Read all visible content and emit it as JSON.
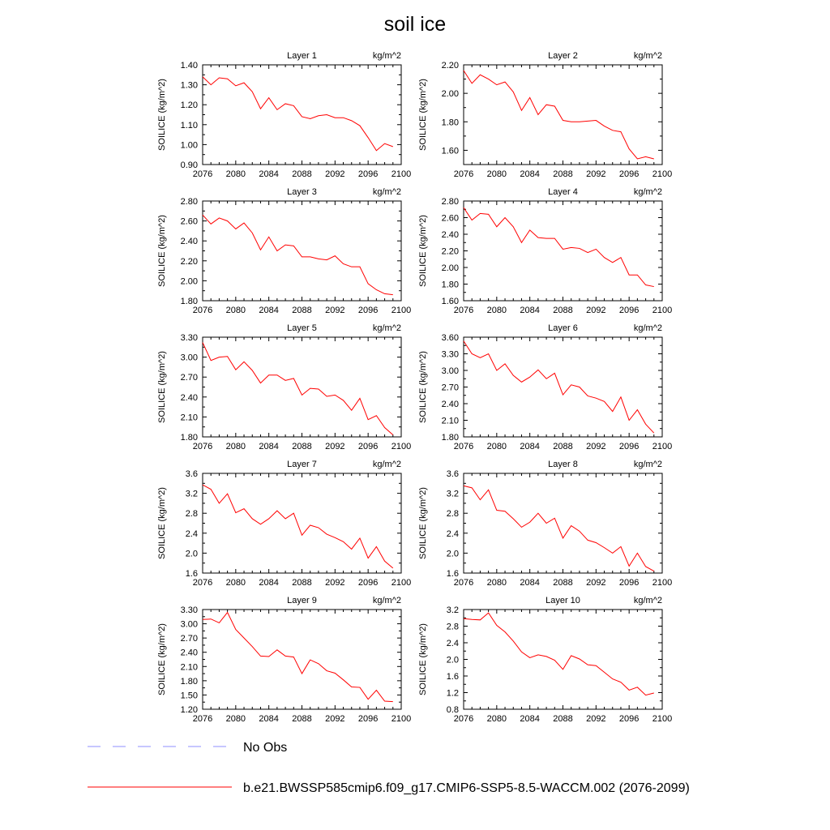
{
  "title": "soil ice",
  "colors": {
    "model_line": "#ff0000",
    "obs_line": "#8f8fff",
    "axis": "#000000",
    "background": "#ffffff"
  },
  "legend": [
    {
      "label": "No Obs",
      "style": "dashed",
      "color": "#8f8fff"
    },
    {
      "label": "b.e21.BWSSP585cmip6.f09_g17.CMIP6-SSP5-8.5-WACCM.002 (2076-2099)",
      "style": "solid",
      "color": "#ff0000"
    }
  ],
  "chart_data": [
    {
      "type": "line",
      "title": "Layer 1",
      "units": "kg/m^2",
      "ylabel": "SOILICE  (kg/m^2)",
      "xlim": [
        2076,
        2100
      ],
      "ylim": [
        0.9,
        1.4
      ],
      "xticks": [
        "2076",
        "2080",
        "2084",
        "2088",
        "2092",
        "2096",
        "2100"
      ],
      "yticks": [
        "0.90",
        "1.00",
        "1.10",
        "1.20",
        "1.30",
        "1.40"
      ],
      "x": [
        2076,
        2077,
        2078,
        2079,
        2080,
        2081,
        2082,
        2083,
        2084,
        2085,
        2086,
        2087,
        2088,
        2089,
        2090,
        2091,
        2092,
        2093,
        2094,
        2095,
        2096,
        2097,
        2098,
        2099
      ],
      "series": [
        {
          "name": "b.e21.BWSSP585cmip6.f09_g17.CMIP6-SSP5-8.5-WACCM.002 (2076-2099)",
          "values": [
            1.34,
            1.3,
            1.335,
            1.33,
            1.295,
            1.31,
            1.265,
            1.18,
            1.235,
            1.175,
            1.205,
            1.195,
            1.14,
            1.13,
            1.145,
            1.15,
            1.135,
            1.135,
            1.12,
            1.095,
            1.035,
            0.97,
            1.005,
            0.99
          ]
        }
      ]
    },
    {
      "type": "line",
      "title": "Layer 2",
      "units": "kg/m^2",
      "ylabel": "SOILICE  (kg/m^2)",
      "xlim": [
        2076,
        2100
      ],
      "ylim": [
        1.5,
        2.2
      ],
      "xticks": [
        "2076",
        "2080",
        "2084",
        "2088",
        "2092",
        "2096",
        "2100"
      ],
      "yticks": [
        "1.60",
        "1.80",
        "2.00",
        "2.20"
      ],
      "x": [
        2076,
        2077,
        2078,
        2079,
        2080,
        2081,
        2082,
        2083,
        2084,
        2085,
        2086,
        2087,
        2088,
        2089,
        2090,
        2091,
        2092,
        2093,
        2094,
        2095,
        2096,
        2097,
        2098,
        2099
      ],
      "series": [
        {
          "name": "b.e21.BWSSP585cmip6.f09_g17.CMIP6-SSP5-8.5-WACCM.002 (2076-2099)",
          "values": [
            2.16,
            2.07,
            2.13,
            2.1,
            2.06,
            2.08,
            2.01,
            1.88,
            1.97,
            1.85,
            1.92,
            1.91,
            1.81,
            1.8,
            1.8,
            1.805,
            1.81,
            1.77,
            1.74,
            1.73,
            1.61,
            1.54,
            1.555,
            1.54
          ]
        }
      ]
    },
    {
      "type": "line",
      "title": "Layer 3",
      "units": "kg/m^2",
      "ylabel": "SOILICE  (kg/m^2)",
      "xlim": [
        2076,
        2100
      ],
      "ylim": [
        1.8,
        2.8
      ],
      "xticks": [
        "2076",
        "2080",
        "2084",
        "2088",
        "2092",
        "2096",
        "2100"
      ],
      "yticks": [
        "1.80",
        "2.00",
        "2.20",
        "2.40",
        "2.60",
        "2.80"
      ],
      "x": [
        2076,
        2077,
        2078,
        2079,
        2080,
        2081,
        2082,
        2083,
        2084,
        2085,
        2086,
        2087,
        2088,
        2089,
        2090,
        2091,
        2092,
        2093,
        2094,
        2095,
        2096,
        2097,
        2098,
        2099
      ],
      "series": [
        {
          "name": "b.e21.BWSSP585cmip6.f09_g17.CMIP6-SSP5-8.5-WACCM.002 (2076-2099)",
          "values": [
            2.66,
            2.57,
            2.63,
            2.6,
            2.52,
            2.58,
            2.48,
            2.31,
            2.44,
            2.3,
            2.36,
            2.35,
            2.24,
            2.24,
            2.22,
            2.21,
            2.25,
            2.17,
            2.14,
            2.14,
            1.97,
            1.91,
            1.87,
            1.86
          ]
        }
      ]
    },
    {
      "type": "line",
      "title": "Layer 4",
      "units": "kg/m^2",
      "ylabel": "SOILICE  (kg/m^2)",
      "xlim": [
        2076,
        2100
      ],
      "ylim": [
        1.6,
        2.8
      ],
      "xticks": [
        "2076",
        "2080",
        "2084",
        "2088",
        "2092",
        "2096",
        "2100"
      ],
      "yticks": [
        "1.60",
        "1.80",
        "2.00",
        "2.20",
        "2.40",
        "2.60",
        "2.80"
      ],
      "x": [
        2076,
        2077,
        2078,
        2079,
        2080,
        2081,
        2082,
        2083,
        2084,
        2085,
        2086,
        2087,
        2088,
        2089,
        2090,
        2091,
        2092,
        2093,
        2094,
        2095,
        2096,
        2097,
        2098,
        2099
      ],
      "series": [
        {
          "name": "b.e21.BWSSP585cmip6.f09_g17.CMIP6-SSP5-8.5-WACCM.002 (2076-2099)",
          "values": [
            2.72,
            2.57,
            2.65,
            2.64,
            2.49,
            2.6,
            2.49,
            2.3,
            2.45,
            2.36,
            2.35,
            2.35,
            2.22,
            2.24,
            2.23,
            2.18,
            2.22,
            2.12,
            2.06,
            2.12,
            1.91,
            1.91,
            1.79,
            1.77
          ]
        }
      ]
    },
    {
      "type": "line",
      "title": "Layer 5",
      "units": "kg/m^2",
      "ylabel": "SOILICE  (kg/m^2)",
      "xlim": [
        2076,
        2100
      ],
      "ylim": [
        1.8,
        3.3
      ],
      "xticks": [
        "2076",
        "2080",
        "2084",
        "2088",
        "2092",
        "2096",
        "2100"
      ],
      "yticks": [
        "1.80",
        "2.10",
        "2.40",
        "2.70",
        "3.00",
        "3.30"
      ],
      "x": [
        2076,
        2077,
        2078,
        2079,
        2080,
        2081,
        2082,
        2083,
        2084,
        2085,
        2086,
        2087,
        2088,
        2089,
        2090,
        2091,
        2092,
        2093,
        2094,
        2095,
        2096,
        2097,
        2098,
        2099
      ],
      "series": [
        {
          "name": "b.e21.BWSSP585cmip6.f09_g17.CMIP6-SSP5-8.5-WACCM.002 (2076-2099)",
          "values": [
            3.22,
            2.95,
            3.0,
            3.01,
            2.81,
            2.93,
            2.8,
            2.61,
            2.73,
            2.73,
            2.65,
            2.68,
            2.43,
            2.53,
            2.52,
            2.41,
            2.43,
            2.35,
            2.2,
            2.38,
            2.06,
            2.12,
            1.94,
            1.83
          ]
        }
      ]
    },
    {
      "type": "line",
      "title": "Layer 6",
      "units": "kg/m^2",
      "ylabel": "SOILICE  (kg/m^2)",
      "xlim": [
        2076,
        2100
      ],
      "ylim": [
        1.8,
        3.6
      ],
      "xticks": [
        "2076",
        "2080",
        "2084",
        "2088",
        "2092",
        "2096",
        "2100"
      ],
      "yticks": [
        "1.80",
        "2.10",
        "2.40",
        "2.70",
        "3.00",
        "3.30",
        "3.60"
      ],
      "x": [
        2076,
        2077,
        2078,
        2079,
        2080,
        2081,
        2082,
        2083,
        2084,
        2085,
        2086,
        2087,
        2088,
        2089,
        2090,
        2091,
        2092,
        2093,
        2094,
        2095,
        2096,
        2097,
        2098,
        2099
      ],
      "series": [
        {
          "name": "b.e21.BWSSP585cmip6.f09_g17.CMIP6-SSP5-8.5-WACCM.002 (2076-2099)",
          "values": [
            3.53,
            3.3,
            3.23,
            3.3,
            3.0,
            3.12,
            2.91,
            2.79,
            2.88,
            3.01,
            2.85,
            2.95,
            2.56,
            2.74,
            2.7,
            2.54,
            2.5,
            2.44,
            2.26,
            2.52,
            2.1,
            2.29,
            2.03,
            1.87
          ]
        }
      ]
    },
    {
      "type": "line",
      "title": "Layer 7",
      "units": "kg/m^2",
      "ylabel": "SOILICE  (kg/m^2)",
      "xlim": [
        2076,
        2100
      ],
      "ylim": [
        1.6,
        3.6
      ],
      "xticks": [
        "2076",
        "2080",
        "2084",
        "2088",
        "2092",
        "2096",
        "2100"
      ],
      "yticks": [
        "1.6",
        "2.0",
        "2.4",
        "2.8",
        "3.2",
        "3.6"
      ],
      "x": [
        2076,
        2077,
        2078,
        2079,
        2080,
        2081,
        2082,
        2083,
        2084,
        2085,
        2086,
        2087,
        2088,
        2089,
        2090,
        2091,
        2092,
        2093,
        2094,
        2095,
        2096,
        2097,
        2098,
        2099
      ],
      "series": [
        {
          "name": "b.e21.BWSSP585cmip6.f09_g17.CMIP6-SSP5-8.5-WACCM.002 (2076-2099)",
          "values": [
            3.37,
            3.28,
            3.0,
            3.19,
            2.81,
            2.89,
            2.69,
            2.58,
            2.69,
            2.85,
            2.69,
            2.8,
            2.36,
            2.56,
            2.51,
            2.38,
            2.31,
            2.23,
            2.08,
            2.3,
            1.9,
            2.13,
            1.84,
            1.7
          ]
        }
      ]
    },
    {
      "type": "line",
      "title": "Layer 8",
      "units": "kg/m^2",
      "ylabel": "SOILICE  (kg/m^2)",
      "xlim": [
        2076,
        2100
      ],
      "ylim": [
        1.6,
        3.6
      ],
      "xticks": [
        "2076",
        "2080",
        "2084",
        "2088",
        "2092",
        "2096",
        "2100"
      ],
      "yticks": [
        "1.6",
        "2.0",
        "2.4",
        "2.8",
        "3.2",
        "3.6"
      ],
      "x": [
        2076,
        2077,
        2078,
        2079,
        2080,
        2081,
        2082,
        2083,
        2084,
        2085,
        2086,
        2087,
        2088,
        2089,
        2090,
        2091,
        2092,
        2093,
        2094,
        2095,
        2096,
        2097,
        2098,
        2099
      ],
      "series": [
        {
          "name": "b.e21.BWSSP585cmip6.f09_g17.CMIP6-SSP5-8.5-WACCM.002 (2076-2099)",
          "values": [
            3.35,
            3.31,
            3.07,
            3.27,
            2.86,
            2.84,
            2.69,
            2.52,
            2.62,
            2.8,
            2.6,
            2.7,
            2.3,
            2.55,
            2.44,
            2.26,
            2.21,
            2.11,
            2.0,
            2.13,
            1.74,
            2.0,
            1.73,
            1.64
          ]
        }
      ]
    },
    {
      "type": "line",
      "title": "Layer 9",
      "units": "kg/m^2",
      "ylabel": "SOILICE  (kg/m^2)",
      "xlim": [
        2076,
        2100
      ],
      "ylim": [
        1.2,
        3.3
      ],
      "xticks": [
        "2076",
        "2080",
        "2084",
        "2088",
        "2092",
        "2096",
        "2100"
      ],
      "yticks": [
        "1.20",
        "1.50",
        "1.80",
        "2.10",
        "2.40",
        "2.70",
        "3.00",
        "3.30"
      ],
      "x": [
        2076,
        2077,
        2078,
        2079,
        2080,
        2081,
        2082,
        2083,
        2084,
        2085,
        2086,
        2087,
        2088,
        2089,
        2090,
        2091,
        2092,
        2093,
        2094,
        2095,
        2096,
        2097,
        2098,
        2099
      ],
      "series": [
        {
          "name": "b.e21.BWSSP585cmip6.f09_g17.CMIP6-SSP5-8.5-WACCM.002 (2076-2099)",
          "values": [
            3.09,
            3.1,
            3.02,
            3.24,
            2.88,
            2.7,
            2.52,
            2.32,
            2.31,
            2.45,
            2.32,
            2.3,
            1.95,
            2.24,
            2.16,
            2.01,
            1.96,
            1.82,
            1.67,
            1.66,
            1.41,
            1.6,
            1.37,
            1.36
          ]
        }
      ]
    },
    {
      "type": "line",
      "title": "Layer 10",
      "units": "kg/m^2",
      "ylabel": "SOILICE  (kg/m^2)",
      "xlim": [
        2076,
        2100
      ],
      "ylim": [
        0.8,
        3.2
      ],
      "xticks": [
        "2076",
        "2080",
        "2084",
        "2088",
        "2092",
        "2096",
        "2100"
      ],
      "yticks": [
        "0.8",
        "1.2",
        "1.6",
        "2.0",
        "2.4",
        "2.8",
        "3.2"
      ],
      "x": [
        2076,
        2077,
        2078,
        2079,
        2080,
        2081,
        2082,
        2083,
        2084,
        2085,
        2086,
        2087,
        2088,
        2089,
        2090,
        2091,
        2092,
        2093,
        2094,
        2095,
        2096,
        2097,
        2098,
        2099
      ],
      "series": [
        {
          "name": "b.e21.BWSSP585cmip6.f09_g17.CMIP6-SSP5-8.5-WACCM.002 (2076-2099)",
          "values": [
            2.98,
            2.96,
            2.95,
            3.12,
            2.82,
            2.66,
            2.44,
            2.18,
            2.04,
            2.11,
            2.07,
            1.98,
            1.76,
            2.09,
            2.01,
            1.87,
            1.85,
            1.69,
            1.53,
            1.45,
            1.26,
            1.33,
            1.14,
            1.19
          ]
        }
      ]
    }
  ]
}
